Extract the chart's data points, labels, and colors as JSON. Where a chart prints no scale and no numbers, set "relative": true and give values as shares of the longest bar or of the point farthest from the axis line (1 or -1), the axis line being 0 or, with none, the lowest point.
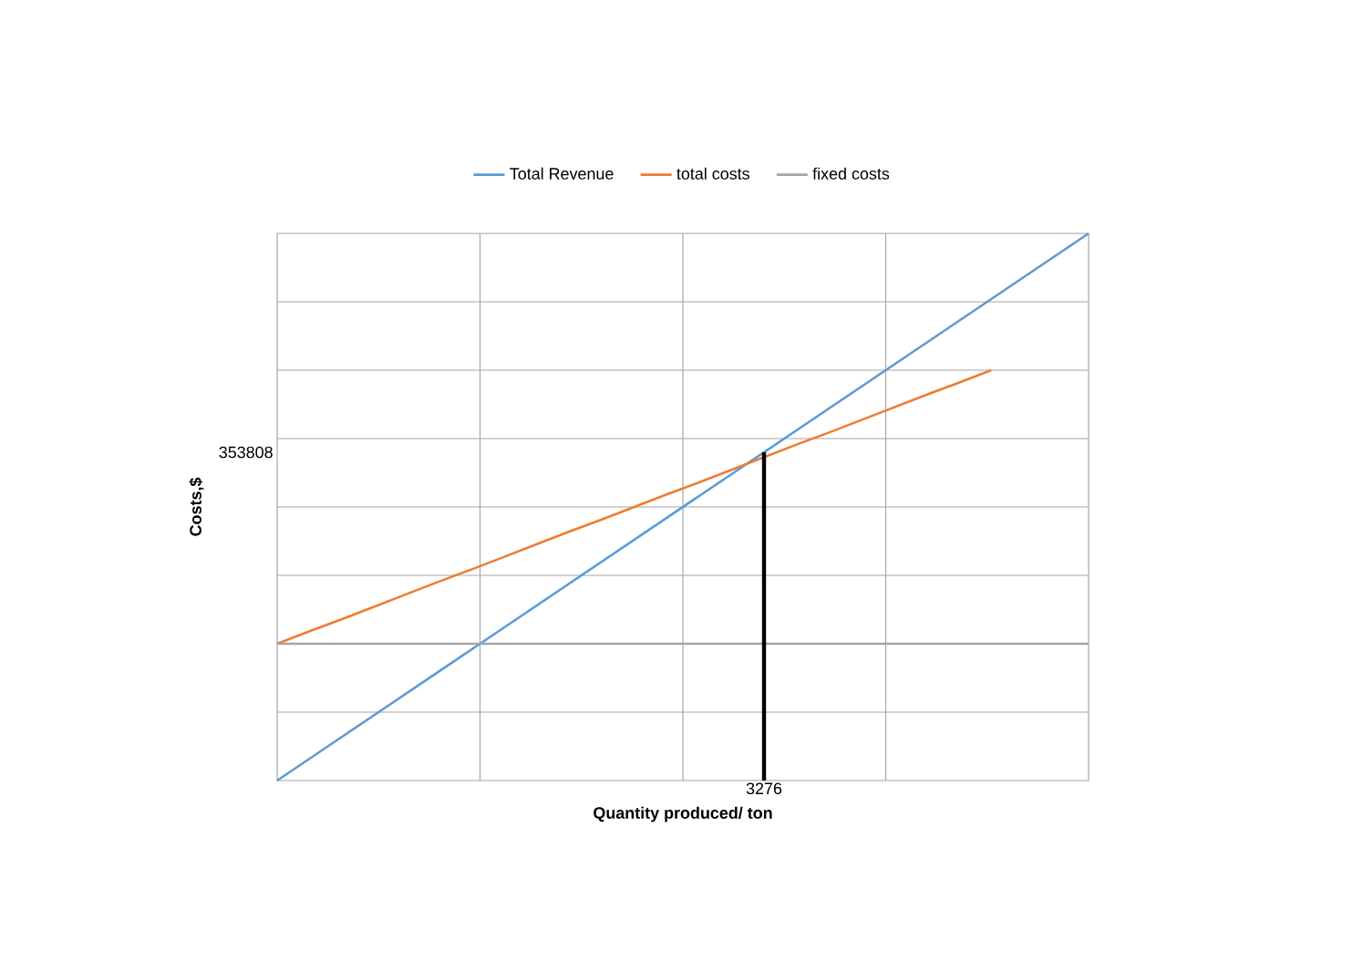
{
  "chart_data": {
    "type": "line",
    "xlabel": "Quantity produced/ ton",
    "ylabel": "Costs,$",
    "relative": true,
    "categories": [
      null,
      null,
      null,
      null,
      null,
      null,
      null,
      null,
      null,
      null,
      null,
      null,
      null,
      null,
      null,
      null,
      null,
      null,
      null,
      null,
      null,
      null,
      null,
      null,
      null,
      null
    ],
    "series": [
      {
        "name": "Total Revenue",
        "color": "#5b9bd5",
        "values": [
          0,
          0.04,
          0.08,
          0.12,
          0.16,
          0.2,
          0.24,
          0.28,
          0.32,
          0.36,
          0.4,
          0.44,
          0.48,
          0.52,
          0.56,
          0.6,
          0.64,
          0.68,
          0.72,
          0.76,
          0.8,
          0.84,
          0.88,
          0.92,
          0.96,
          1
        ]
      },
      {
        "name": "total costs",
        "color": "#ed7d31",
        "values": [
          0.25,
          0.273,
          0.295,
          0.318,
          0.341,
          0.364,
          0.386,
          0.409,
          0.432,
          0.455,
          0.477,
          0.5,
          0.523,
          0.545,
          0.568,
          0.591,
          0.614,
          0.636,
          0.659,
          0.682,
          0.705,
          0.727,
          0.75,
          null,
          null,
          null
        ]
      },
      {
        "name": "fixed costs",
        "color": "#a5a5a5",
        "values": [
          0.25,
          0.25,
          0.25,
          0.25,
          0.25,
          0.25,
          0.25,
          0.25,
          0.25,
          0.25,
          0.25,
          0.25,
          0.25,
          0.25,
          0.25,
          0.25,
          0.25,
          0.25,
          0.25,
          0.25,
          0.25,
          0.25,
          0.25,
          0.25,
          0.25,
          0.25
        ]
      }
    ],
    "annotations": [
      "353808",
      "3276"
    ],
    "grid": true,
    "legend": "top",
    "marker": "none",
    "line_style": "solid"
  }
}
